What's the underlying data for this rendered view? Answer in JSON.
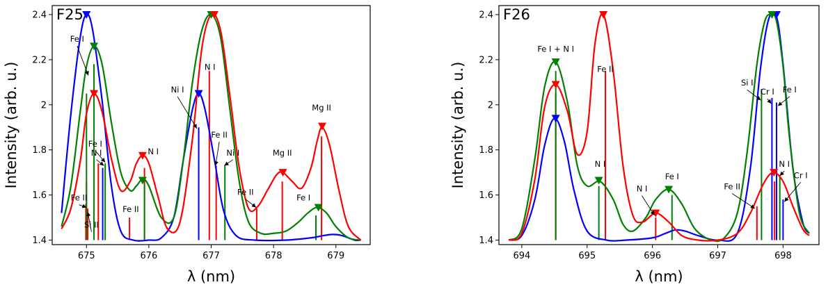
{
  "colors": {
    "blue": "#0000ff",
    "green": "#008000",
    "red": "#ff0000"
  },
  "chart_data": [
    {
      "type": "line",
      "title": "F25",
      "xlabel": "λ (nm)",
      "ylabel": "Intensity (arb. u.)",
      "xlim": [
        674.45,
        679.55
      ],
      "ylim": [
        1.38,
        2.44
      ],
      "xticks": [
        675,
        676,
        677,
        678,
        679
      ],
      "yticks": [
        1.4,
        1.6,
        1.8,
        2.0,
        2.2,
        2.4
      ],
      "series": [
        {
          "name": "blue",
          "color": "#0000ff",
          "x": [
            674.6,
            674.75,
            674.9,
            675.0,
            675.1,
            675.25,
            675.4,
            675.55,
            675.75,
            676.0,
            676.2,
            676.4,
            676.55,
            676.7,
            676.8,
            676.9,
            677.05,
            677.2,
            677.4,
            677.7,
            678.2,
            678.6,
            678.8,
            678.95,
            679.1,
            679.3,
            679.4
          ],
          "y": [
            1.52,
            1.96,
            2.3,
            2.4,
            2.33,
            2.02,
            1.64,
            1.44,
            1.4,
            1.4,
            1.41,
            1.5,
            1.75,
            1.98,
            2.05,
            1.98,
            1.76,
            1.53,
            1.42,
            1.4,
            1.4,
            1.41,
            1.42,
            1.425,
            1.42,
            1.4,
            1.4
          ]
        },
        {
          "name": "green",
          "color": "#008000",
          "x": [
            674.6,
            674.75,
            674.9,
            675.0,
            675.12,
            675.25,
            675.4,
            675.55,
            675.7,
            675.8,
            675.9,
            676.0,
            676.2,
            676.4,
            676.55,
            676.7,
            676.85,
            677.0,
            677.15,
            677.3,
            677.45,
            677.6,
            677.8,
            678.0,
            678.2,
            678.4,
            678.55,
            678.7,
            678.85,
            679.0,
            679.2,
            679.4
          ],
          "y": [
            1.46,
            1.64,
            1.97,
            2.17,
            2.26,
            2.18,
            1.92,
            1.7,
            1.62,
            1.64,
            1.67,
            1.64,
            1.5,
            1.5,
            1.75,
            2.1,
            2.33,
            2.4,
            2.3,
            1.98,
            1.66,
            1.48,
            1.43,
            1.43,
            1.44,
            1.48,
            1.52,
            1.545,
            1.52,
            1.46,
            1.41,
            1.4
          ]
        },
        {
          "name": "red",
          "color": "#ff0000",
          "x": [
            674.6,
            674.75,
            674.9,
            675.0,
            675.12,
            675.25,
            675.4,
            675.55,
            675.7,
            675.8,
            675.9,
            676.0,
            676.15,
            676.3,
            676.5,
            676.7,
            676.85,
            677.0,
            677.15,
            677.3,
            677.45,
            677.6,
            677.75,
            677.9,
            678.05,
            678.15,
            678.3,
            678.45,
            678.6,
            678.7,
            678.78,
            678.9,
            679.05,
            679.2,
            679.4
          ],
          "y": [
            1.45,
            1.54,
            1.75,
            1.96,
            2.05,
            1.97,
            1.76,
            1.62,
            1.66,
            1.74,
            1.775,
            1.74,
            1.59,
            1.45,
            1.48,
            1.85,
            2.25,
            2.4,
            2.33,
            2.04,
            1.72,
            1.54,
            1.55,
            1.62,
            1.69,
            1.7,
            1.66,
            1.63,
            1.72,
            1.84,
            1.9,
            1.82,
            1.62,
            1.46,
            1.4
          ]
        }
      ],
      "peak_markers": [
        {
          "series": "blue",
          "x": 675.0,
          "y": 2.4
        },
        {
          "series": "blue",
          "x": 676.8,
          "y": 2.05
        },
        {
          "series": "green",
          "x": 675.12,
          "y": 2.26
        },
        {
          "series": "green",
          "x": 675.9,
          "y": 1.665
        },
        {
          "series": "green",
          "x": 677.0,
          "y": 2.4
        },
        {
          "series": "green",
          "x": 678.72,
          "y": 1.545
        },
        {
          "series": "red",
          "x": 675.12,
          "y": 2.05
        },
        {
          "series": "red",
          "x": 675.9,
          "y": 1.775
        },
        {
          "series": "red",
          "x": 677.05,
          "y": 2.4
        },
        {
          "series": "red",
          "x": 678.15,
          "y": 1.7
        },
        {
          "series": "red",
          "x": 678.78,
          "y": 1.905
        }
      ],
      "sticks": [
        {
          "series": "red",
          "x": 674.99,
          "top": 1.56
        },
        {
          "series": "red",
          "x": 675.0,
          "top": 1.66
        },
        {
          "series": "red",
          "x": 675.02,
          "top": 1.54
        },
        {
          "series": "red",
          "x": 675.19,
          "top": 1.74
        },
        {
          "series": "red",
          "x": 675.69,
          "top": 1.5
        },
        {
          "series": "red",
          "x": 675.93,
          "top": 1.72
        },
        {
          "series": "red",
          "x": 676.97,
          "top": 2.15
        },
        {
          "series": "red",
          "x": 677.08,
          "top": 1.73
        },
        {
          "series": "red",
          "x": 677.73,
          "top": 1.54
        },
        {
          "series": "red",
          "x": 678.14,
          "top": 1.66
        },
        {
          "series": "red",
          "x": 678.77,
          "top": 1.86
        },
        {
          "series": "green",
          "x": 675.0,
          "top": 2.05
        },
        {
          "series": "green",
          "x": 675.12,
          "top": 2.18
        },
        {
          "series": "green",
          "x": 675.3,
          "top": 1.74
        },
        {
          "series": "green",
          "x": 675.93,
          "top": 1.65
        },
        {
          "series": "green",
          "x": 677.22,
          "top": 1.73
        },
        {
          "series": "green",
          "x": 678.68,
          "top": 1.51
        },
        {
          "series": "blue",
          "x": 675.26,
          "top": 1.72
        },
        {
          "series": "blue",
          "x": 676.8,
          "top": 1.9
        }
      ],
      "annotations": [
        {
          "text": "Fe I",
          "x": 674.85,
          "y": 2.28,
          "ax": 675.03,
          "ay": 2.13
        },
        {
          "text": "Fe II",
          "x": 674.88,
          "y": 1.575,
          "ax": 675.0,
          "ay": 1.545
        },
        {
          "text": "Si II",
          "x": 675.08,
          "y": 1.455,
          "ax": 675.02,
          "ay": 1.525
        },
        {
          "text": "Fe I",
          "x": 675.14,
          "y": 1.815,
          "ax": 675.3,
          "ay": 1.745
        },
        {
          "text": "N I",
          "x": 675.16,
          "y": 1.775,
          "ax": 675.28,
          "ay": 1.73
        },
        {
          "text": "Fe II",
          "x": 675.71,
          "y": 1.525,
          "ax": null,
          "ay": null
        },
        {
          "text": "N I",
          "x": 676.07,
          "y": 1.78,
          "ax": null,
          "ay": null
        },
        {
          "text": "Ni I",
          "x": 676.46,
          "y": 2.055,
          "ax": 676.77,
          "ay": 1.895
        },
        {
          "text": "N I",
          "x": 676.98,
          "y": 2.155,
          "ax": null,
          "ay": null
        },
        {
          "text": "Fe II",
          "x": 677.13,
          "y": 1.855,
          "ax": 677.07,
          "ay": 1.73
        },
        {
          "text": "Ni I",
          "x": 677.35,
          "y": 1.775,
          "ax": 677.21,
          "ay": 1.73
        },
        {
          "text": "Fe II",
          "x": 677.55,
          "y": 1.6,
          "ax": 677.72,
          "ay": 1.545
        },
        {
          "text": "Mg II",
          "x": 678.14,
          "y": 1.775,
          "ax": null,
          "ay": null
        },
        {
          "text": "Mg II",
          "x": 678.77,
          "y": 1.975,
          "ax": null,
          "ay": null
        },
        {
          "text": "Fe I",
          "x": 678.48,
          "y": 1.575,
          "ax": null,
          "ay": null
        }
      ]
    },
    {
      "type": "line",
      "title": "F26",
      "xlabel": "λ (nm)",
      "ylabel": "Intensity (arb. u.)",
      "xlim": [
        693.65,
        698.55
      ],
      "ylim": [
        1.38,
        2.44
      ],
      "xticks": [
        694,
        695,
        696,
        697,
        698
      ],
      "yticks": [
        1.4,
        1.6,
        1.8,
        2.0,
        2.2,
        2.4
      ],
      "series": [
        {
          "name": "blue",
          "color": "#0000ff",
          "x": [
            693.8,
            694.0,
            694.2,
            694.35,
            694.5,
            694.65,
            694.8,
            695.0,
            695.3,
            695.6,
            696.0,
            696.2,
            696.35,
            696.5,
            696.7,
            697.0,
            697.3,
            697.5,
            697.65,
            697.78,
            697.9,
            698.0,
            698.15,
            698.3,
            698.4
          ],
          "y": [
            1.4,
            1.42,
            1.58,
            1.82,
            1.94,
            1.84,
            1.62,
            1.44,
            1.4,
            1.4,
            1.41,
            1.43,
            1.445,
            1.44,
            1.42,
            1.4,
            1.43,
            1.72,
            2.15,
            2.38,
            2.39,
            2.18,
            1.72,
            1.48,
            1.43
          ]
        },
        {
          "name": "green",
          "color": "#008000",
          "x": [
            693.8,
            694.0,
            694.2,
            694.35,
            694.52,
            694.7,
            694.85,
            695.0,
            695.2,
            695.4,
            695.55,
            695.7,
            695.9,
            696.05,
            696.25,
            696.45,
            696.65,
            696.9,
            697.1,
            697.3,
            697.45,
            697.6,
            697.72,
            697.82,
            697.9,
            698.0,
            698.1,
            698.25,
            698.4
          ],
          "y": [
            1.4,
            1.45,
            1.76,
            2.08,
            2.19,
            2.01,
            1.73,
            1.64,
            1.66,
            1.58,
            1.47,
            1.44,
            1.5,
            1.58,
            1.625,
            1.56,
            1.45,
            1.4,
            1.41,
            1.52,
            1.79,
            2.18,
            2.37,
            2.4,
            2.37,
            2.17,
            1.85,
            1.52,
            1.43
          ]
        },
        {
          "name": "red",
          "color": "#ff0000",
          "x": [
            693.8,
            694.0,
            694.2,
            694.35,
            694.52,
            694.7,
            694.85,
            695.0,
            695.12,
            695.25,
            695.4,
            695.55,
            695.7,
            695.85,
            696.05,
            696.25,
            696.45,
            696.7,
            697.0,
            697.3,
            697.5,
            697.7,
            697.85,
            698.0,
            698.15,
            698.3,
            698.4
          ],
          "y": [
            1.4,
            1.43,
            1.67,
            1.99,
            2.09,
            1.97,
            1.78,
            1.88,
            2.27,
            2.4,
            2.15,
            1.73,
            1.51,
            1.48,
            1.52,
            1.48,
            1.42,
            1.4,
            1.4,
            1.43,
            1.52,
            1.65,
            1.7,
            1.66,
            1.55,
            1.45,
            1.42
          ]
        }
      ],
      "peak_markers": [
        {
          "series": "blue",
          "x": 694.52,
          "y": 1.94
        },
        {
          "series": "blue",
          "x": 697.9,
          "y": 2.4
        },
        {
          "series": "green",
          "x": 694.52,
          "y": 2.19
        },
        {
          "series": "green",
          "x": 695.18,
          "y": 1.665
        },
        {
          "series": "green",
          "x": 696.25,
          "y": 1.625
        },
        {
          "series": "green",
          "x": 697.83,
          "y": 2.4
        },
        {
          "series": "red",
          "x": 694.52,
          "y": 2.09
        },
        {
          "series": "red",
          "x": 695.25,
          "y": 2.4
        },
        {
          "series": "red",
          "x": 696.05,
          "y": 1.52
        },
        {
          "series": "red",
          "x": 697.86,
          "y": 1.7
        }
      ],
      "sticks": [
        {
          "series": "red",
          "x": 694.52,
          "top": 2.05
        },
        {
          "series": "red",
          "x": 695.28,
          "top": 2.15
        },
        {
          "series": "red",
          "x": 696.05,
          "top": 1.5
        },
        {
          "series": "red",
          "x": 697.6,
          "top": 1.55
        },
        {
          "series": "red",
          "x": 697.87,
          "top": 1.66
        },
        {
          "series": "green",
          "x": 694.52,
          "top": 2.15
        },
        {
          "series": "green",
          "x": 695.18,
          "top": 1.64
        },
        {
          "series": "green",
          "x": 696.3,
          "top": 1.6
        },
        {
          "series": "green",
          "x": 697.67,
          "top": 2.07
        },
        {
          "series": "green",
          "x": 697.95,
          "top": 1.68
        },
        {
          "series": "blue",
          "x": 697.83,
          "top": 2.03
        },
        {
          "series": "blue",
          "x": 697.9,
          "top": 2.01
        },
        {
          "series": "blue",
          "x": 698.0,
          "top": 1.58
        }
      ],
      "annotations": [
        {
          "text": "Fe I + N I",
          "x": 694.52,
          "y": 2.235,
          "ax": null,
          "ay": null
        },
        {
          "text": "Fe II",
          "x": 695.28,
          "y": 2.145,
          "ax": null,
          "ay": null
        },
        {
          "text": "N I",
          "x": 695.2,
          "y": 1.725,
          "ax": null,
          "ay": null
        },
        {
          "text": "Fe I",
          "x": 696.3,
          "y": 1.67,
          "ax": null,
          "ay": null
        },
        {
          "text": "N I",
          "x": 695.84,
          "y": 1.615,
          "ax": 696.03,
          "ay": 1.51
        },
        {
          "text": "Fe II",
          "x": 697.22,
          "y": 1.625,
          "ax": 697.57,
          "ay": 1.54
        },
        {
          "text": "Si I",
          "x": 697.45,
          "y": 2.085,
          "ax": 697.66,
          "ay": 2.02
        },
        {
          "text": "Cr I",
          "x": 697.76,
          "y": 2.045,
          "ax": 697.82,
          "ay": 2.005
        },
        {
          "text": "Fe I",
          "x": 698.1,
          "y": 2.055,
          "ax": 697.92,
          "ay": 1.995
        },
        {
          "text": "N I",
          "x": 698.02,
          "y": 1.725,
          "ax": 697.95,
          "ay": 1.685
        },
        {
          "text": "Cr I",
          "x": 698.27,
          "y": 1.675,
          "ax": 698.02,
          "ay": 1.57
        }
      ]
    }
  ]
}
